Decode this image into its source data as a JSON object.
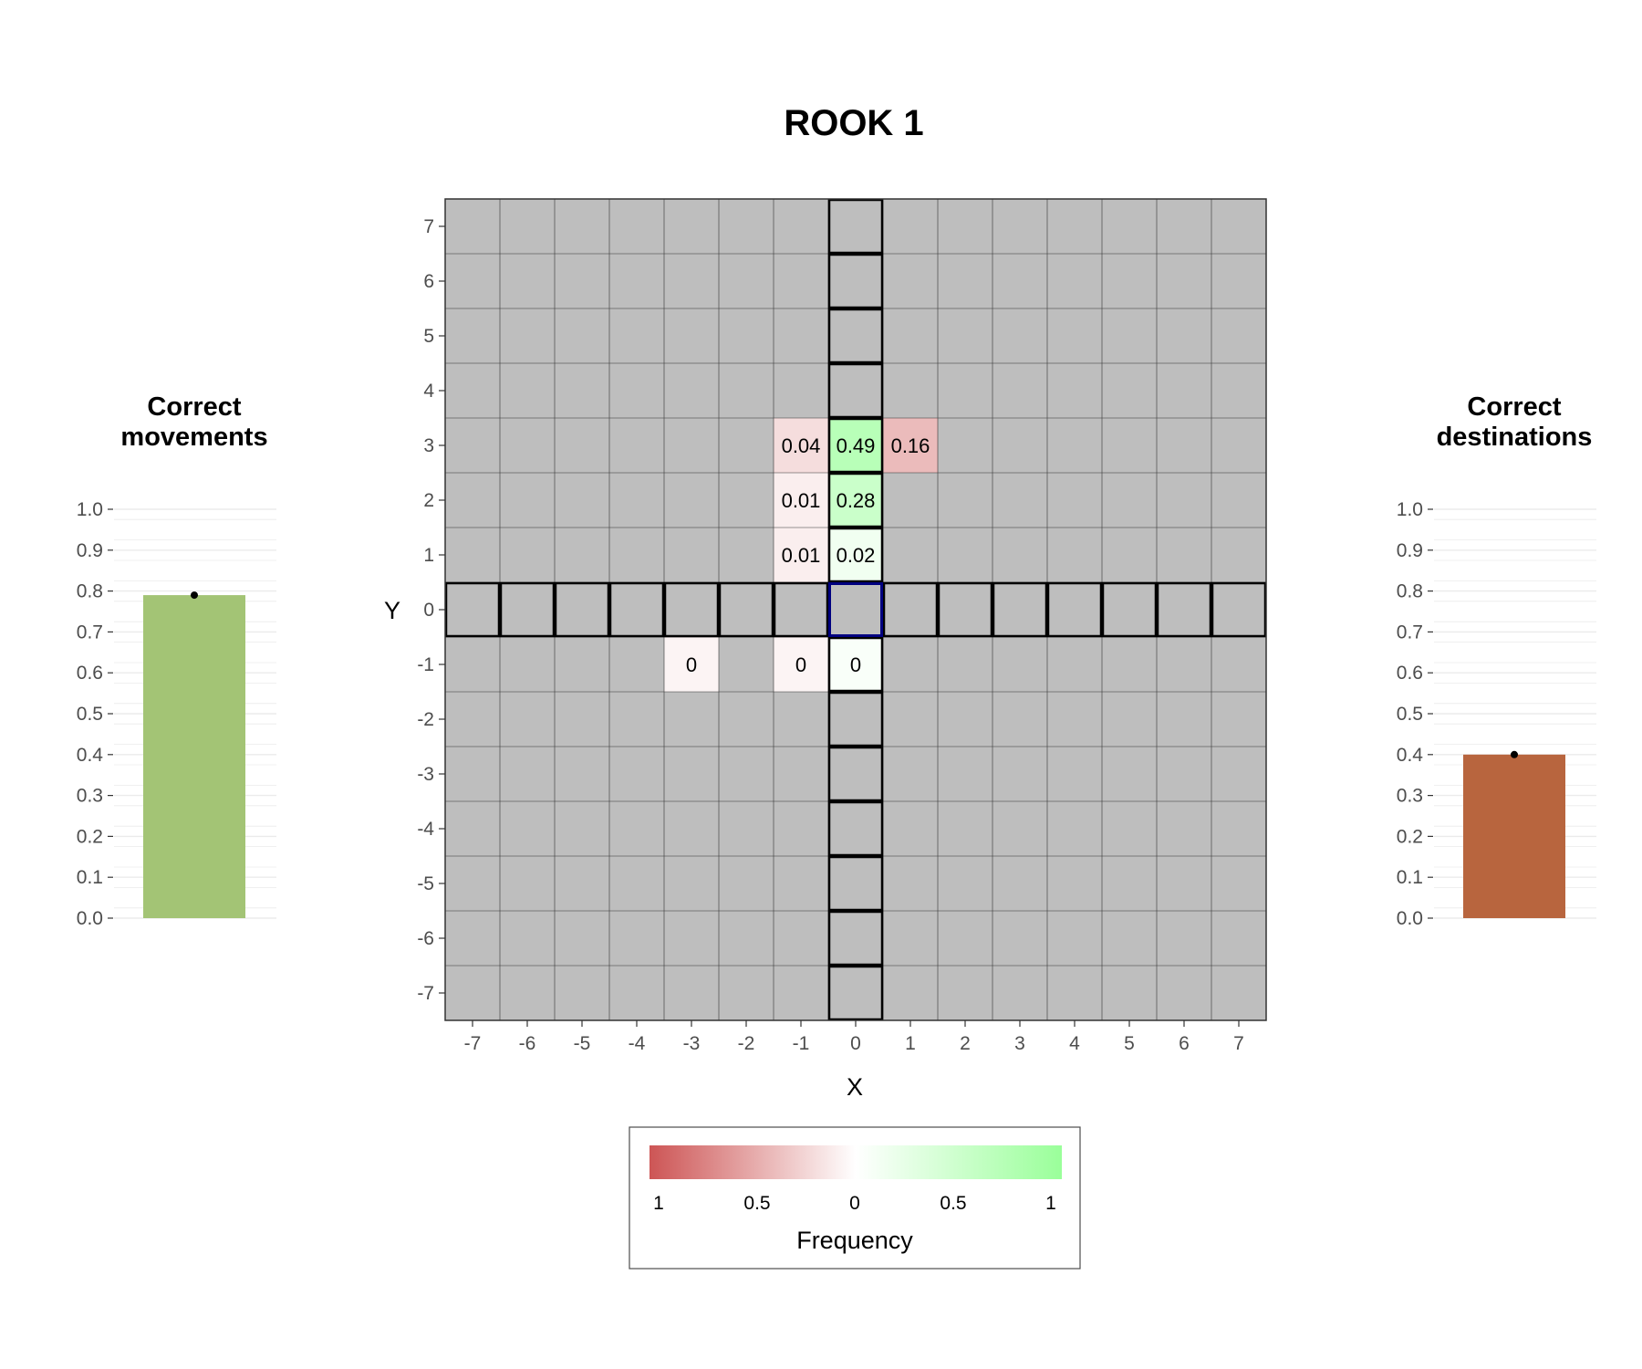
{
  "chart_data": [
    {
      "type": "heatmap",
      "title": "ROOK 1",
      "xlabel": "X",
      "ylabel": "Y",
      "x_range": [
        -7,
        7
      ],
      "y_range": [
        -7,
        7
      ],
      "x_ticks": [
        "-7",
        "-6",
        "-5",
        "-4",
        "-3",
        "-2",
        "-1",
        "0",
        "1",
        "2",
        "3",
        "4",
        "5",
        "6",
        "7"
      ],
      "y_ticks": [
        "7",
        "6",
        "5",
        "4",
        "3",
        "2",
        "1",
        "0",
        "-1",
        "-2",
        "-3",
        "-4",
        "-5",
        "-6",
        "-7"
      ],
      "background_color": "#bebebe",
      "origin": {
        "x": 0,
        "y": 0,
        "outline_color": "#000080"
      },
      "legal_moves": "row y=0 and column x=0",
      "cells": [
        {
          "x": -1,
          "y": 3,
          "label": "0.04",
          "value": 0.04,
          "correct": false
        },
        {
          "x": 0,
          "y": 3,
          "label": "0.49",
          "value": 0.49,
          "correct": true
        },
        {
          "x": 1,
          "y": 3,
          "label": "0.16",
          "value": 0.16,
          "correct": false
        },
        {
          "x": -1,
          "y": 2,
          "label": "0.01",
          "value": 0.01,
          "correct": false
        },
        {
          "x": 0,
          "y": 2,
          "label": "0.28",
          "value": 0.28,
          "correct": true
        },
        {
          "x": -1,
          "y": 1,
          "label": "0.01",
          "value": 0.01,
          "correct": false
        },
        {
          "x": 0,
          "y": 1,
          "label": "0.02",
          "value": 0.02,
          "correct": true
        },
        {
          "x": -3,
          "y": -1,
          "label": "0",
          "value": 0.004,
          "correct": false
        },
        {
          "x": -1,
          "y": -1,
          "label": "0",
          "value": 0.004,
          "correct": false
        },
        {
          "x": 0,
          "y": -1,
          "label": "0",
          "value": 0.004,
          "correct": true
        }
      ],
      "legend": {
        "title": "Frequency",
        "tick_labels": [
          "1",
          "0.5",
          "0",
          "0.5",
          "1"
        ],
        "low_color": "#cd5555",
        "mid_color": "#ffffff",
        "high_color": "#9aff9a",
        "placement": "bottom"
      }
    },
    {
      "type": "bar",
      "title_lines": [
        "Correct",
        "movements"
      ],
      "values": [
        0.79
      ],
      "ylim": [
        0,
        1
      ],
      "y_ticks": [
        "0.0",
        "0.1",
        "0.2",
        "0.3",
        "0.4",
        "0.5",
        "0.6",
        "0.7",
        "0.8",
        "0.9",
        "1.0"
      ],
      "color": "#a3c475"
    },
    {
      "type": "bar",
      "title_lines": [
        "Correct",
        "destinations"
      ],
      "values": [
        0.4
      ],
      "ylim": [
        0,
        1
      ],
      "y_ticks": [
        "0.0",
        "0.1",
        "0.2",
        "0.3",
        "0.4",
        "0.5",
        "0.6",
        "0.7",
        "0.8",
        "0.9",
        "1.0"
      ],
      "color": "#b8653e"
    }
  ]
}
